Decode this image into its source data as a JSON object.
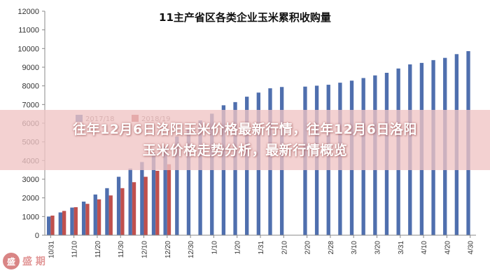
{
  "chart_data": {
    "type": "bar",
    "title": "11主产省区各类企业玉米累积收购量",
    "xlabel": "",
    "ylabel": "",
    "ylim": [
      0,
      12000
    ],
    "yticks": [
      0,
      1000,
      2000,
      3000,
      4000,
      5000,
      6000,
      7000,
      8000,
      9000,
      10000,
      11000,
      12000
    ],
    "grid": false,
    "legend_position": "top-left",
    "x_tick_labels": [
      "10/31",
      "11/10",
      "11/20",
      "11/30",
      "12/10",
      "12/20",
      "12/30",
      "1/10",
      "1/20",
      "1/31",
      "2/10",
      "2/20",
      "2/28",
      "3/10",
      "3/20",
      "3/31",
      "4/10",
      "4/20",
      "4/30"
    ],
    "series": [
      {
        "name": "2017/18",
        "color": "#4f6fae",
        "values": [
          1000,
          1220,
          1480,
          1800,
          2180,
          2520,
          3130,
          3570,
          3920,
          4400,
          4740,
          5280,
          5640,
          6150,
          6510,
          6960,
          7130,
          7420,
          7640,
          7870,
          7940,
          null,
          7960,
          8010,
          8060,
          8170,
          8280,
          8420,
          8560,
          8700,
          8930,
          9150,
          9230,
          9380,
          9500,
          9700,
          9860
        ]
      },
      {
        "name": "2018/19",
        "color": "#c0504d",
        "values": [
          1050,
          1300,
          1500,
          1680,
          1920,
          2130,
          2520,
          2840,
          3130,
          3450,
          3800,
          null,
          null,
          null,
          null,
          null,
          null,
          null,
          null,
          null,
          null,
          null,
          null,
          null,
          null,
          null,
          null,
          null,
          null,
          null,
          null,
          null,
          null,
          null,
          null,
          null,
          null
        ]
      }
    ]
  },
  "banner": {
    "line1": "往年12月6日洛阳玉米价格最新行情，往年12月6日洛阳",
    "line2": "玉米价格走势分析，最新行情概览"
  },
  "watermark": {
    "logo": "盛",
    "text": "盛 期"
  }
}
